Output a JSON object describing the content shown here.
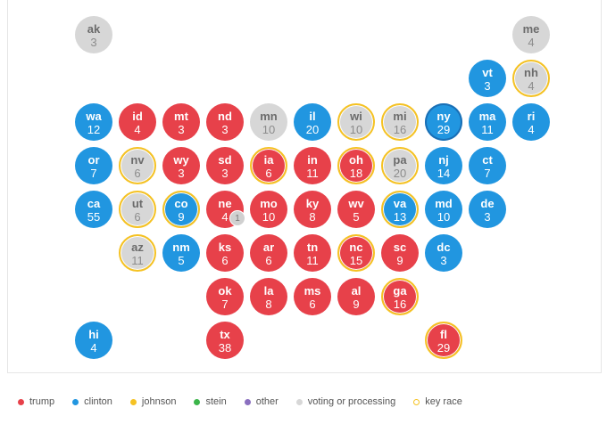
{
  "colors": {
    "trump": "#e7414a",
    "clinton": "#2196e0",
    "johnson": "#f5c223",
    "stein": "#3bb54a",
    "other": "#8a6fbf",
    "pending": "#d7d7d7",
    "key_race": "#f5c223"
  },
  "states": [
    {
      "abbr": "ak",
      "ev": "3",
      "status": "pending",
      "key": false,
      "row": 0,
      "col": 0
    },
    {
      "abbr": "me",
      "ev": "4",
      "status": "pending",
      "key": false,
      "row": 0,
      "col": 10
    },
    {
      "abbr": "vt",
      "ev": "3",
      "status": "clinton",
      "key": false,
      "row": 1,
      "col": 9
    },
    {
      "abbr": "nh",
      "ev": "4",
      "status": "pending",
      "key": true,
      "row": 1,
      "col": 10
    },
    {
      "abbr": "wa",
      "ev": "12",
      "status": "clinton",
      "key": false,
      "row": 2,
      "col": 0
    },
    {
      "abbr": "id",
      "ev": "4",
      "status": "trump",
      "key": false,
      "row": 2,
      "col": 1
    },
    {
      "abbr": "mt",
      "ev": "3",
      "status": "trump",
      "key": false,
      "row": 2,
      "col": 2
    },
    {
      "abbr": "nd",
      "ev": "3",
      "status": "trump",
      "key": false,
      "row": 2,
      "col": 3
    },
    {
      "abbr": "mn",
      "ev": "10",
      "status": "pending",
      "key": false,
      "row": 2,
      "col": 4
    },
    {
      "abbr": "il",
      "ev": "20",
      "status": "clinton",
      "key": false,
      "row": 2,
      "col": 5
    },
    {
      "abbr": "wi",
      "ev": "10",
      "status": "pending",
      "key": true,
      "row": 2,
      "col": 6
    },
    {
      "abbr": "mi",
      "ev": "16",
      "status": "pending",
      "key": true,
      "row": 2,
      "col": 7
    },
    {
      "abbr": "ny",
      "ev": "29",
      "status": "clinton",
      "key": false,
      "ring": true,
      "row": 2,
      "col": 8
    },
    {
      "abbr": "ma",
      "ev": "11",
      "status": "clinton",
      "key": false,
      "row": 2,
      "col": 9
    },
    {
      "abbr": "ri",
      "ev": "4",
      "status": "clinton",
      "key": false,
      "row": 2,
      "col": 10
    },
    {
      "abbr": "or",
      "ev": "7",
      "status": "clinton",
      "key": false,
      "row": 3,
      "col": 0
    },
    {
      "abbr": "nv",
      "ev": "6",
      "status": "pending",
      "key": true,
      "row": 3,
      "col": 1
    },
    {
      "abbr": "wy",
      "ev": "3",
      "status": "trump",
      "key": false,
      "row": 3,
      "col": 2
    },
    {
      "abbr": "sd",
      "ev": "3",
      "status": "trump",
      "key": false,
      "row": 3,
      "col": 3
    },
    {
      "abbr": "ia",
      "ev": "6",
      "status": "trump",
      "key": true,
      "row": 3,
      "col": 4
    },
    {
      "abbr": "in",
      "ev": "11",
      "status": "trump",
      "key": false,
      "row": 3,
      "col": 5
    },
    {
      "abbr": "oh",
      "ev": "18",
      "status": "trump",
      "key": true,
      "row": 3,
      "col": 6
    },
    {
      "abbr": "pa",
      "ev": "20",
      "status": "pending",
      "key": true,
      "row": 3,
      "col": 7
    },
    {
      "abbr": "nj",
      "ev": "14",
      "status": "clinton",
      "key": false,
      "row": 3,
      "col": 8
    },
    {
      "abbr": "ct",
      "ev": "7",
      "status": "clinton",
      "key": false,
      "row": 3,
      "col": 9
    },
    {
      "abbr": "ca",
      "ev": "55",
      "status": "clinton",
      "key": false,
      "row": 4,
      "col": 0
    },
    {
      "abbr": "ut",
      "ev": "6",
      "status": "pending",
      "key": true,
      "row": 4,
      "col": 1
    },
    {
      "abbr": "co",
      "ev": "9",
      "status": "clinton",
      "key": true,
      "row": 4,
      "col": 2
    },
    {
      "abbr": "ne",
      "ev": "4",
      "status": "trump",
      "key": false,
      "badge": "1",
      "row": 4,
      "col": 3
    },
    {
      "abbr": "mo",
      "ev": "10",
      "status": "trump",
      "key": false,
      "row": 4,
      "col": 4
    },
    {
      "abbr": "ky",
      "ev": "8",
      "status": "trump",
      "key": false,
      "row": 4,
      "col": 5
    },
    {
      "abbr": "wv",
      "ev": "5",
      "status": "trump",
      "key": false,
      "row": 4,
      "col": 6
    },
    {
      "abbr": "va",
      "ev": "13",
      "status": "clinton",
      "key": true,
      "row": 4,
      "col": 7
    },
    {
      "abbr": "md",
      "ev": "10",
      "status": "clinton",
      "key": false,
      "row": 4,
      "col": 8
    },
    {
      "abbr": "de",
      "ev": "3",
      "status": "clinton",
      "key": false,
      "row": 4,
      "col": 9
    },
    {
      "abbr": "az",
      "ev": "11",
      "status": "pending",
      "key": true,
      "row": 5,
      "col": 1
    },
    {
      "abbr": "nm",
      "ev": "5",
      "status": "clinton",
      "key": false,
      "row": 5,
      "col": 2
    },
    {
      "abbr": "ks",
      "ev": "6",
      "status": "trump",
      "key": false,
      "row": 5,
      "col": 3
    },
    {
      "abbr": "ar",
      "ev": "6",
      "status": "trump",
      "key": false,
      "row": 5,
      "col": 4
    },
    {
      "abbr": "tn",
      "ev": "11",
      "status": "trump",
      "key": false,
      "row": 5,
      "col": 5
    },
    {
      "abbr": "nc",
      "ev": "15",
      "status": "trump",
      "key": true,
      "row": 5,
      "col": 6
    },
    {
      "abbr": "sc",
      "ev": "9",
      "status": "trump",
      "key": false,
      "row": 5,
      "col": 7
    },
    {
      "abbr": "dc",
      "ev": "3",
      "status": "clinton",
      "key": false,
      "row": 5,
      "col": 8
    },
    {
      "abbr": "ok",
      "ev": "7",
      "status": "trump",
      "key": false,
      "row": 6,
      "col": 3
    },
    {
      "abbr": "la",
      "ev": "8",
      "status": "trump",
      "key": false,
      "row": 6,
      "col": 4
    },
    {
      "abbr": "ms",
      "ev": "6",
      "status": "trump",
      "key": false,
      "row": 6,
      "col": 5
    },
    {
      "abbr": "al",
      "ev": "9",
      "status": "trump",
      "key": false,
      "row": 6,
      "col": 6
    },
    {
      "abbr": "ga",
      "ev": "16",
      "status": "trump",
      "key": true,
      "row": 6,
      "col": 7
    },
    {
      "abbr": "hi",
      "ev": "4",
      "status": "clinton",
      "key": false,
      "row": 7,
      "col": 0
    },
    {
      "abbr": "tx",
      "ev": "38",
      "status": "trump",
      "key": false,
      "row": 7,
      "col": 3
    },
    {
      "abbr": "fl",
      "ev": "29",
      "status": "trump",
      "key": true,
      "row": 7,
      "col": 8
    }
  ],
  "legend": [
    {
      "label": "trump",
      "color": "#e7414a",
      "style": "fill"
    },
    {
      "label": "clinton",
      "color": "#2196e0",
      "style": "fill"
    },
    {
      "label": "johnson",
      "color": "#f5c223",
      "style": "fill"
    },
    {
      "label": "stein",
      "color": "#3bb54a",
      "style": "fill"
    },
    {
      "label": "other",
      "color": "#8a6fbf",
      "style": "fill"
    },
    {
      "label": "voting or processing",
      "color": "#d7d7d7",
      "style": "fill"
    },
    {
      "label": "key race",
      "color": "#f5c223",
      "style": "ring"
    }
  ]
}
